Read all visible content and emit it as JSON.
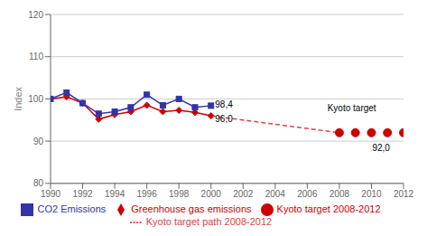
{
  "chart_data": {
    "type": "line",
    "y_label": "Index",
    "x": [
      1990,
      1991,
      1992,
      1993,
      1994,
      1995,
      1996,
      1997,
      1998,
      1999,
      2000,
      2001,
      2002,
      2003,
      2004,
      2005,
      2006,
      2007,
      2008,
      2009,
      2010,
      2011,
      2012
    ],
    "series": [
      {
        "name": "Greenhouse gas emissions",
        "color": "#cc0000",
        "marker": "diamond",
        "line_style": "solid",
        "values": [
          100.0,
          100.5,
          99.0,
          95.2,
          96.3,
          97.0,
          98.5,
          97.0,
          97.3,
          96.8,
          96.0,
          null,
          null,
          null,
          null,
          null,
          null,
          null,
          null,
          null,
          null,
          null,
          null
        ]
      },
      {
        "name": "Kyoto target path 2008-2012",
        "color": "#dd4444",
        "marker": "none",
        "line_style": "dashed",
        "values": [
          null,
          null,
          null,
          null,
          null,
          null,
          null,
          null,
          null,
          null,
          96.0,
          95.5,
          95.0,
          94.5,
          94.0,
          93.5,
          93.0,
          92.5,
          92.0,
          null,
          null,
          null,
          null
        ]
      },
      {
        "name": "Kyoto target 2008-2012",
        "color": "#cc0000",
        "marker": "circle",
        "line_style": "none",
        "values": [
          null,
          null,
          null,
          null,
          null,
          null,
          null,
          null,
          null,
          null,
          null,
          null,
          null,
          null,
          null,
          null,
          null,
          null,
          92.0,
          92.0,
          92.0,
          92.0,
          92.0
        ]
      },
      {
        "name": "CO2 Emissions",
        "color": "#3333aa",
        "marker": "square",
        "line_style": "solid",
        "values": [
          100.0,
          101.5,
          99.0,
          96.5,
          97.0,
          98.0,
          101.0,
          98.5,
          100.0,
          98.0,
          98.4,
          null,
          null,
          null,
          null,
          null,
          null,
          null,
          null,
          null,
          null,
          null,
          null
        ]
      }
    ],
    "annotations": [
      {
        "text": "98,4",
        "x": 2000.2,
        "y": 98.8
      },
      {
        "text": "96,0",
        "x": 2000.2,
        "y": 95.2
      },
      {
        "text": "92,0",
        "x": 2010.0,
        "y": 88.5
      },
      {
        "text": "Kyoto target",
        "x": 2007.2,
        "y": 97.8
      }
    ],
    "xlim": [
      1990,
      2012
    ],
    "xticks": [
      1990,
      1992,
      1994,
      1996,
      1998,
      2000,
      2002,
      2004,
      2006,
      2008,
      2010,
      2012
    ],
    "ylim": [
      80,
      120
    ],
    "yticks": [
      80,
      90,
      100,
      110,
      120
    ],
    "grid": "y",
    "legend": "bottom"
  }
}
